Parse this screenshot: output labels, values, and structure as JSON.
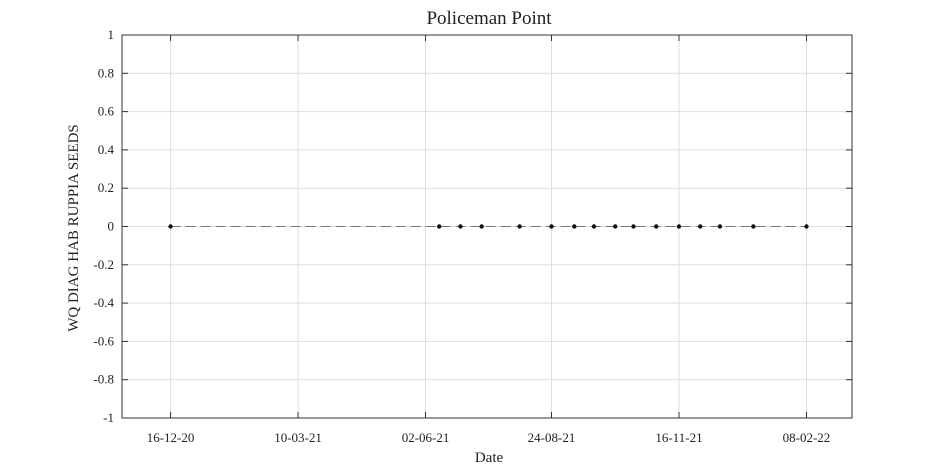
{
  "chart_data": {
    "type": "line",
    "title": "Policeman Point",
    "xlabel": "Date",
    "ylabel": "WQ DIAG HAB RUPPIA SEEDS",
    "x_tick_labels": [
      "16-12-20",
      "10-03-21",
      "02-06-21",
      "24-08-21",
      "16-11-21",
      "08-02-22"
    ],
    "x_tick_dates": [
      "2020-12-16",
      "2021-03-10",
      "2021-06-02",
      "2021-08-24",
      "2021-11-16",
      "2022-02-08"
    ],
    "xlim": [
      "2020-11-14",
      "2022-03-10"
    ],
    "y_tick_labels": [
      "1",
      "0.8",
      "0.6",
      "0.4",
      "0.2",
      "0",
      "-0.2",
      "-0.4",
      "-0.6",
      "-0.8",
      "-1"
    ],
    "ylim": [
      -1,
      1
    ],
    "grid": true,
    "series": [
      {
        "x": [
          "2020-12-16",
          "2021-06-11",
          "2021-06-25",
          "2021-07-09",
          "2021-08-03",
          "2021-08-24",
          "2021-09-08",
          "2021-09-21",
          "2021-10-05",
          "2021-10-17",
          "2021-11-01",
          "2021-11-16",
          "2021-11-30",
          "2021-12-13",
          "2022-01-04",
          "2022-02-08"
        ],
        "y": [
          0,
          0,
          0,
          0,
          0,
          0,
          0,
          0,
          0,
          0,
          0,
          0,
          0,
          0,
          0,
          0
        ]
      }
    ],
    "colors": {
      "line": "#777777",
      "marker": "#111111",
      "grid": "#dedede",
      "axes": "#333333"
    }
  }
}
